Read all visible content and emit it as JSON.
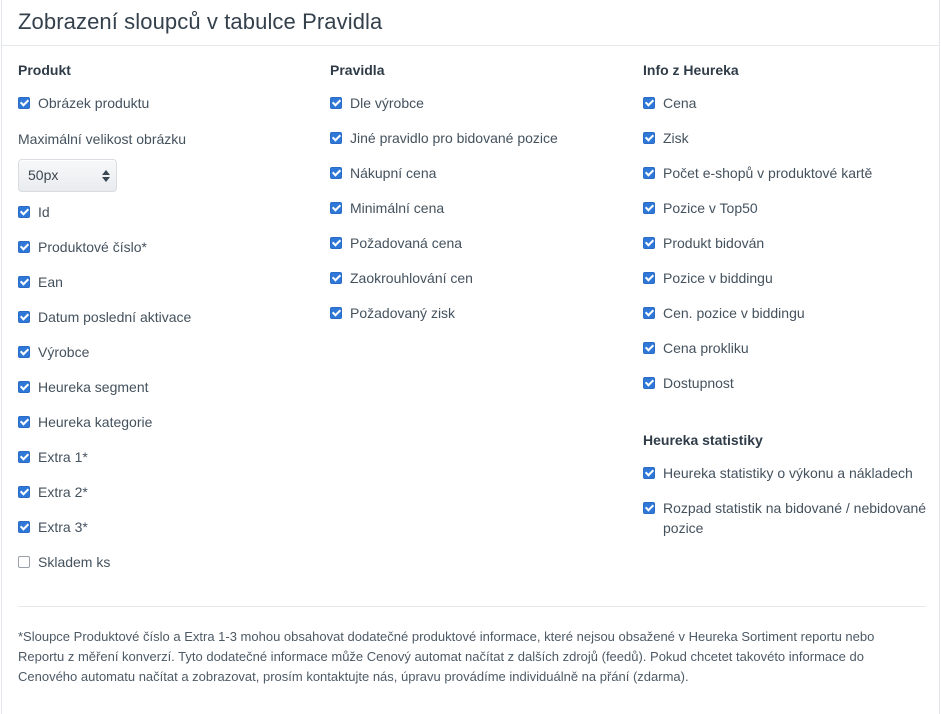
{
  "title": "Zobrazení sloupců v tabulce Pravidla",
  "columns": {
    "produkt": {
      "heading": "Produkt",
      "image_item": {
        "label": "Obrázek produktu",
        "checked": true
      },
      "max_size_label": "Maximální velikost obrázku",
      "max_size_select": {
        "value": "50px"
      },
      "items": [
        {
          "label": "Id",
          "checked": true
        },
        {
          "label": "Produktové číslo*",
          "checked": true
        },
        {
          "label": "Ean",
          "checked": true
        },
        {
          "label": "Datum poslední aktivace",
          "checked": true
        },
        {
          "label": "Výrobce",
          "checked": true
        },
        {
          "label": "Heureka segment",
          "checked": true
        },
        {
          "label": "Heureka kategorie",
          "checked": true
        },
        {
          "label": "Extra 1*",
          "checked": true
        },
        {
          "label": "Extra 2*",
          "checked": true
        },
        {
          "label": "Extra 3*",
          "checked": true
        },
        {
          "label": "Skladem ks",
          "checked": false
        }
      ]
    },
    "pravidla": {
      "heading": "Pravidla",
      "items": [
        {
          "label": "Dle výrobce",
          "checked": true
        },
        {
          "label": "Jiné pravidlo pro bidované pozice",
          "checked": true
        },
        {
          "label": "Nákupní cena",
          "checked": true
        },
        {
          "label": "Minimální cena",
          "checked": true
        },
        {
          "label": "Požadovaná cena",
          "checked": true
        },
        {
          "label": "Zaokrouhlování cen",
          "checked": true
        },
        {
          "label": "Požadovaný zisk",
          "checked": true
        }
      ]
    },
    "info": {
      "heading": "Info z Heureka",
      "items": [
        {
          "label": "Cena",
          "checked": true
        },
        {
          "label": "Zisk",
          "checked": true
        },
        {
          "label": "Počet e-shopů v produktové kartě",
          "checked": true
        },
        {
          "label": "Pozice v Top50",
          "checked": true
        },
        {
          "label": "Produkt bidován",
          "checked": true
        },
        {
          "label": "Pozice v biddingu",
          "checked": true
        },
        {
          "label": "Cen. pozice v biddingu",
          "checked": true
        },
        {
          "label": "Cena prokliku",
          "checked": true
        },
        {
          "label": "Dostupnost",
          "checked": true
        }
      ],
      "stats_heading": "Heureka statistiky",
      "stats_items": [
        {
          "label": "Heureka statistiky o výkonu a nákladech",
          "checked": true
        },
        {
          "label": "Rozpad statistik na bidované / nebidované pozice",
          "checked": true
        }
      ]
    }
  },
  "footnote": "*Sloupce Produktové číslo a Extra 1-3 mohou obsahovat dodatečné produktové informace, které nejsou obsažené v Heureka Sortiment reportu nebo Reportu z měření konverzí. Tyto dodatečné informace může Cenový automat načítat z dalších zdrojů (feedů). Pokud chcetet takovéto informace do Cenového automatu načítat a zobrazovat, prosím kontaktujte nás, úpravu provádíme individuálně na přání (zdarma).",
  "colors": {
    "checkbox_checked": "#2f78d8",
    "checkbox_unchecked_border": "#9aa3ab"
  }
}
